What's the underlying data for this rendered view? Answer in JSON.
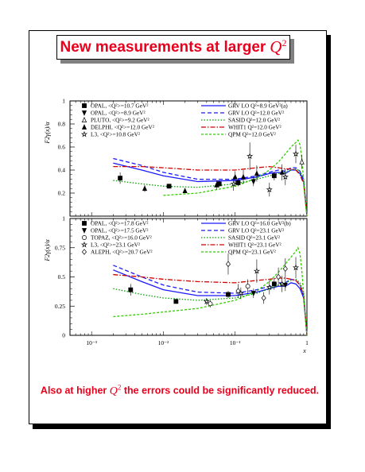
{
  "slide": {
    "title": "New measurements at larger",
    "title_symbol": "Q",
    "title_power": "2",
    "footer_prefix": "Also at higher",
    "footer_symbol": "Q",
    "footer_power": "2",
    "footer_suffix": "the errors could be significantly reduced."
  },
  "colors": {
    "headline": "#e8001c",
    "grv_lo": "#1a1aff",
    "sasid": "#00a000",
    "whit1": "#d00000",
    "qpm": "#33cc00"
  },
  "chart_data": [
    {
      "type": "scatter",
      "title": "",
      "xlabel": "x",
      "ylabel": "F2γ(x)/α",
      "xscale": "log",
      "xlim": [
        0.0005,
        1
      ],
      "ylim": [
        0,
        1
      ],
      "yticks": [
        "0",
        "0.2",
        "0.4",
        "0.6",
        "0.8",
        "1"
      ],
      "legend_placement": "top",
      "data_legend": [
        "OPAL, <Q²>=10.7 GeV²",
        "OPAL, <Q²>=8.9 GeV²",
        "PLUTO, <Q²>=9.2 GeV²",
        "DELPHI, <Q²>=12.0 GeV²",
        "L3, <Q²>=10.8 GeV²"
      ],
      "series": [
        {
          "name": "OPAL, <Q²>=10.7 GeV²",
          "marker": "square",
          "points": [
            [
              0.0025,
              0.33,
              0.05
            ],
            [
              0.012,
              0.26,
              0.02
            ],
            [
              0.06,
              0.28,
              0.03
            ],
            [
              0.11,
              0.29,
              0.03
            ],
            [
              0.35,
              0.35,
              0.04
            ]
          ]
        },
        {
          "name": "OPAL, <Q²>=8.9 GeV²",
          "marker": "triangle-down",
          "points": [
            [
              0.18,
              0.3,
              0.04
            ]
          ]
        },
        {
          "name": "PLUTO, <Q²>=9.2 GeV²",
          "marker": "triangle-open",
          "points": [
            [
              0.85,
              0.47,
              0.06
            ]
          ]
        },
        {
          "name": "DELPHI, <Q²>=12.0 GeV²",
          "marker": "triangle",
          "points": [
            [
              0.0055,
              0.24,
              0.03
            ],
            [
              0.02,
              0.22,
              0.02
            ],
            [
              0.055,
              0.27,
              0.04
            ],
            [
              0.1,
              0.34,
              0.05
            ],
            [
              0.13,
              0.34,
              0.06
            ],
            [
              0.2,
              0.37,
              0.07
            ],
            [
              0.45,
              0.38,
              0.07
            ]
          ]
        },
        {
          "name": "L3, <Q²>=10.8 GeV²",
          "marker": "star",
          "points": [
            [
              0.095,
              0.28,
              0.06
            ],
            [
              0.16,
              0.52,
              0.12
            ],
            [
              0.3,
              0.23,
              0.06
            ],
            [
              0.5,
              0.34,
              0.07
            ],
            [
              0.7,
              0.54,
              0.08
            ]
          ]
        }
      ],
      "curves": [
        {
          "name": "GRV LO Q²=8.9 GeV²(a)",
          "style": "solid",
          "color": "#1a1aff",
          "points": [
            [
              0.002,
              0.46
            ],
            [
              0.005,
              0.4
            ],
            [
              0.01,
              0.35
            ],
            [
              0.03,
              0.3
            ],
            [
              0.1,
              0.31
            ],
            [
              0.2,
              0.34
            ],
            [
              0.3,
              0.37
            ],
            [
              0.4,
              0.38
            ],
            [
              0.5,
              0.37
            ],
            [
              0.6,
              0.4
            ],
            [
              0.7,
              0.4
            ],
            [
              0.8,
              0.37
            ],
            [
              0.9,
              0.3
            ],
            [
              1.0,
              0.0
            ]
          ]
        },
        {
          "name": "GRV LO Q²=12.0 GeV²",
          "style": "dashed",
          "color": "#1a1aff",
          "points": [
            [
              0.002,
              0.5
            ],
            [
              0.005,
              0.44
            ],
            [
              0.01,
              0.38
            ],
            [
              0.03,
              0.32
            ],
            [
              0.1,
              0.32
            ],
            [
              0.2,
              0.35
            ],
            [
              0.3,
              0.38
            ],
            [
              0.4,
              0.4
            ],
            [
              0.5,
              0.39
            ],
            [
              0.6,
              0.42
            ],
            [
              0.7,
              0.42
            ],
            [
              0.8,
              0.39
            ],
            [
              0.9,
              0.32
            ],
            [
              1.0,
              0.0
            ]
          ]
        },
        {
          "name": "SASID Q²=12.0 GeV²",
          "style": "dotted",
          "color": "#00a000",
          "points": [
            [
              0.002,
              0.31
            ],
            [
              0.005,
              0.28
            ],
            [
              0.01,
              0.26
            ],
            [
              0.03,
              0.25
            ],
            [
              0.1,
              0.28
            ],
            [
              0.2,
              0.32
            ],
            [
              0.3,
              0.35
            ],
            [
              0.4,
              0.37
            ],
            [
              0.5,
              0.38
            ],
            [
              0.6,
              0.4
            ],
            [
              0.7,
              0.41
            ],
            [
              0.8,
              0.39
            ],
            [
              0.9,
              0.32
            ],
            [
              1.0,
              0.0
            ]
          ]
        },
        {
          "name": "WHIT1 Q²=12.0 GeV²",
          "style": "dashdot",
          "color": "#d00000",
          "points": [
            [
              0.002,
              0.43
            ],
            [
              0.005,
              0.43
            ],
            [
              0.01,
              0.42
            ],
            [
              0.03,
              0.4
            ],
            [
              0.1,
              0.4
            ],
            [
              0.2,
              0.42
            ],
            [
              0.3,
              0.43
            ],
            [
              0.4,
              0.42
            ],
            [
              0.5,
              0.41
            ],
            [
              0.6,
              0.41
            ],
            [
              0.7,
              0.4
            ],
            [
              0.8,
              0.36
            ],
            [
              0.9,
              0.28
            ],
            [
              1.0,
              0.0
            ]
          ]
        },
        {
          "name": "QPM Q²=12.0 GeV²",
          "style": "dashed-short",
          "color": "#33cc00",
          "points": [
            [
              0.01,
              0.18
            ],
            [
              0.03,
              0.2
            ],
            [
              0.1,
              0.26
            ],
            [
              0.2,
              0.33
            ],
            [
              0.3,
              0.4
            ],
            [
              0.4,
              0.47
            ],
            [
              0.5,
              0.54
            ],
            [
              0.6,
              0.6
            ],
            [
              0.7,
              0.64
            ],
            [
              0.75,
              0.66
            ],
            [
              0.8,
              0.62
            ],
            [
              0.85,
              0.5
            ],
            [
              0.9,
              0.3
            ],
            [
              0.95,
              0.12
            ],
            [
              1.0,
              0.0
            ]
          ]
        }
      ]
    },
    {
      "type": "scatter",
      "title": "",
      "xlabel": "x",
      "ylabel": "F2γ(x)/α",
      "xscale": "log",
      "xlim": [
        0.0005,
        1
      ],
      "ylim": [
        0,
        1
      ],
      "yticks": [
        "0",
        "0.25",
        "0.5",
        "0.75",
        "1"
      ],
      "xticks": [
        "10⁻³",
        "10⁻²",
        "10⁻¹",
        "1"
      ],
      "legend_placement": "top",
      "data_legend": [
        "OPAL, <Q²>=17.8 GeV²",
        "OPAL, <Q²>=17.5 GeV²",
        "TOPAZ, <Q²>=16.0 GeV²",
        "L3, <Q²>=23.1 GeV²",
        "ALEPH, <Q²>=20.7 GeV²"
      ],
      "series": [
        {
          "name": "OPAL, <Q²>=17.8 GeV²",
          "marker": "square",
          "points": [
            [
              0.0035,
              0.39,
              0.05
            ],
            [
              0.015,
              0.29,
              0.02
            ],
            [
              0.08,
              0.35,
              0.03
            ],
            [
              0.35,
              0.44,
              0.05
            ]
          ]
        },
        {
          "name": "OPAL, <Q²>=17.5 GeV²",
          "marker": "triangle-down",
          "points": [
            [
              0.18,
              0.36,
              0.04
            ],
            [
              0.5,
              0.43,
              0.05
            ]
          ]
        },
        {
          "name": "TOPAZ, <Q²>=16.0 GeV²",
          "marker": "circle-open",
          "points": [
            [
              0.045,
              0.27,
              0.03
            ],
            [
              0.15,
              0.42,
              0.06
            ]
          ]
        },
        {
          "name": "L3, <Q²>=23.1 GeV²",
          "marker": "star",
          "points": [
            [
              0.04,
              0.29,
              0.03
            ],
            [
              0.12,
              0.36,
              0.05
            ],
            [
              0.2,
              0.55,
              0.1
            ],
            [
              0.3,
              0.41,
              0.06
            ],
            [
              0.45,
              0.44,
              0.07
            ],
            [
              0.7,
              0.58,
              0.09
            ]
          ]
        },
        {
          "name": "ALEPH, <Q²>=20.7 GeV²",
          "marker": "diamond-open",
          "points": [
            [
              0.08,
              0.61,
              0.09
            ],
            [
              0.11,
              0.38,
              0.06
            ],
            [
              0.25,
              0.32,
              0.05
            ],
            [
              0.4,
              0.5,
              0.08
            ],
            [
              0.5,
              0.57,
              0.09
            ]
          ]
        }
      ],
      "curves": [
        {
          "name": "GRV LO Q²=16.0 GeV²(b)",
          "style": "solid",
          "color": "#1a1aff",
          "points": [
            [
              0.002,
              0.56
            ],
            [
              0.005,
              0.46
            ],
            [
              0.01,
              0.39
            ],
            [
              0.03,
              0.34
            ],
            [
              0.1,
              0.34
            ],
            [
              0.2,
              0.37
            ],
            [
              0.3,
              0.4
            ],
            [
              0.4,
              0.42
            ],
            [
              0.5,
              0.42
            ],
            [
              0.6,
              0.45
            ],
            [
              0.7,
              0.44
            ],
            [
              0.8,
              0.4
            ],
            [
              0.9,
              0.32
            ],
            [
              1.0,
              0.0
            ]
          ]
        },
        {
          "name": "GRV LO Q²=23.1 GeV²",
          "style": "dashed",
          "color": "#1a1aff",
          "points": [
            [
              0.002,
              0.6
            ],
            [
              0.005,
              0.5
            ],
            [
              0.01,
              0.43
            ],
            [
              0.03,
              0.37
            ],
            [
              0.1,
              0.36
            ],
            [
              0.2,
              0.39
            ],
            [
              0.3,
              0.42
            ],
            [
              0.4,
              0.45
            ],
            [
              0.5,
              0.45
            ],
            [
              0.6,
              0.48
            ],
            [
              0.7,
              0.47
            ],
            [
              0.8,
              0.43
            ],
            [
              0.9,
              0.34
            ],
            [
              1.0,
              0.0
            ]
          ]
        },
        {
          "name": "SASID Q²=23.1 GeV²",
          "style": "dotted",
          "color": "#00a000",
          "points": [
            [
              0.002,
              0.4
            ],
            [
              0.005,
              0.35
            ],
            [
              0.01,
              0.32
            ],
            [
              0.03,
              0.3
            ],
            [
              0.1,
              0.32
            ],
            [
              0.2,
              0.36
            ],
            [
              0.3,
              0.4
            ],
            [
              0.4,
              0.43
            ],
            [
              0.5,
              0.45
            ],
            [
              0.6,
              0.47
            ],
            [
              0.7,
              0.48
            ],
            [
              0.8,
              0.45
            ],
            [
              0.9,
              0.36
            ],
            [
              1.0,
              0.0
            ]
          ]
        },
        {
          "name": "WHIT1 Q²=23.1 GeV²",
          "style": "dashdot",
          "color": "#d00000",
          "points": [
            [
              0.002,
              0.52
            ],
            [
              0.005,
              0.5
            ],
            [
              0.01,
              0.48
            ],
            [
              0.03,
              0.46
            ],
            [
              0.1,
              0.45
            ],
            [
              0.2,
              0.47
            ],
            [
              0.3,
              0.48
            ],
            [
              0.4,
              0.49
            ],
            [
              0.5,
              0.49
            ],
            [
              0.6,
              0.48
            ],
            [
              0.7,
              0.47
            ],
            [
              0.8,
              0.43
            ],
            [
              0.9,
              0.34
            ],
            [
              1.0,
              0.0
            ]
          ]
        },
        {
          "name": "QPM Q²=23.1 GeV²",
          "style": "dashed-short",
          "color": "#33cc00",
          "points": [
            [
              0.002,
              0.16
            ],
            [
              0.005,
              0.18
            ],
            [
              0.01,
              0.2
            ],
            [
              0.03,
              0.23
            ],
            [
              0.1,
              0.3
            ],
            [
              0.2,
              0.38
            ],
            [
              0.3,
              0.46
            ],
            [
              0.4,
              0.54
            ],
            [
              0.5,
              0.61
            ],
            [
              0.6,
              0.67
            ],
            [
              0.7,
              0.72
            ],
            [
              0.75,
              0.75
            ],
            [
              0.8,
              0.7
            ],
            [
              0.85,
              0.55
            ],
            [
              0.9,
              0.35
            ],
            [
              0.95,
              0.15
            ],
            [
              1.0,
              0.0
            ]
          ]
        }
      ]
    }
  ]
}
